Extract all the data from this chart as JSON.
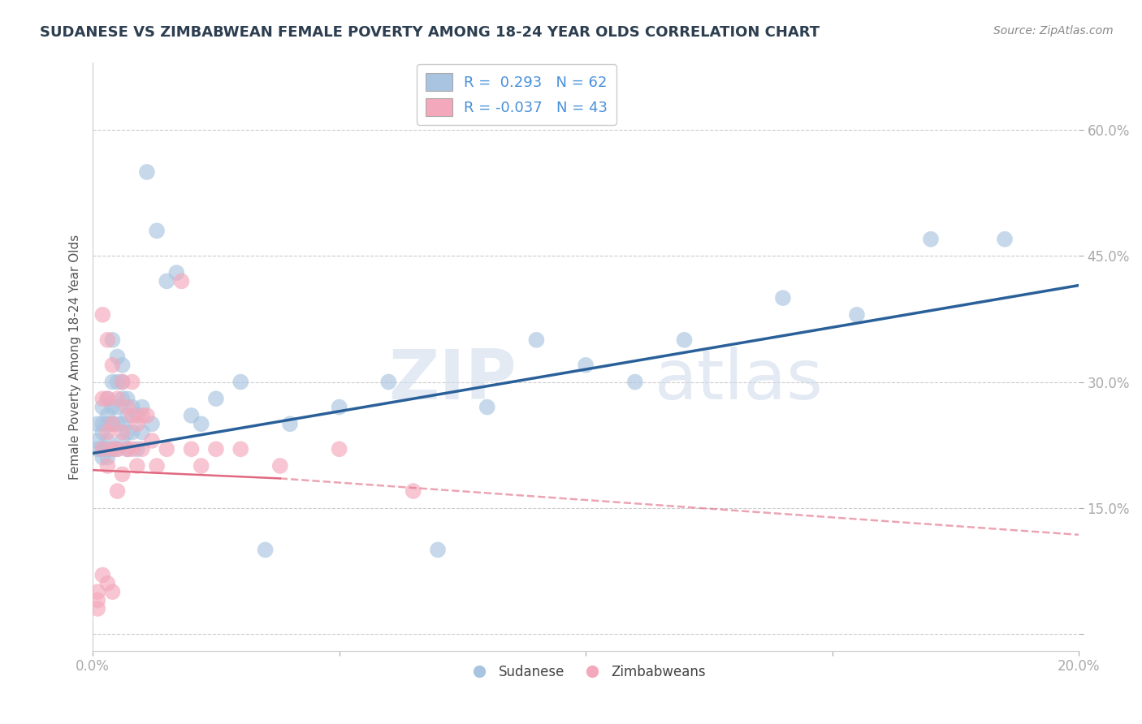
{
  "title": "SUDANESE VS ZIMBABWEAN FEMALE POVERTY AMONG 18-24 YEAR OLDS CORRELATION CHART",
  "source_text": "Source: ZipAtlas.com",
  "ylabel": "Female Poverty Among 18-24 Year Olds",
  "xlim": [
    0.0,
    0.2
  ],
  "ylim": [
    -0.02,
    0.68
  ],
  "sudanese_R": 0.293,
  "sudanese_N": 62,
  "zimbabwean_R": -0.037,
  "zimbabwean_N": 43,
  "sudanese_color": "#a8c4e0",
  "zimbabwean_color": "#f4a8bb",
  "sudanese_line_color": "#2a6099",
  "zimbabwean_line_color": "#e06880",
  "grid_color": "#c8c8c8",
  "background_color": "#ffffff",
  "watermark_zip": "ZIP",
  "watermark_atlas": "atlas",
  "title_color": "#2c3e50",
  "tick_color": "#4a90d9",
  "ylabel_color": "#555555",
  "source_color": "#888888",
  "sudanese_x": [
    0.001,
    0.001,
    0.001,
    0.002,
    0.002,
    0.002,
    0.002,
    0.002,
    0.003,
    0.003,
    0.003,
    0.003,
    0.003,
    0.003,
    0.004,
    0.004,
    0.004,
    0.004,
    0.004,
    0.005,
    0.005,
    0.005,
    0.005,
    0.005,
    0.006,
    0.006,
    0.006,
    0.006,
    0.006,
    0.007,
    0.007,
    0.007,
    0.007,
    0.008,
    0.008,
    0.009,
    0.009,
    0.01,
    0.01,
    0.011,
    0.012,
    0.013,
    0.015,
    0.017,
    0.02,
    0.022,
    0.025,
    0.03,
    0.035,
    0.04,
    0.05,
    0.06,
    0.07,
    0.08,
    0.09,
    0.1,
    0.11,
    0.12,
    0.14,
    0.155,
    0.17,
    0.185
  ],
  "sudanese_y": [
    0.25,
    0.23,
    0.22,
    0.27,
    0.25,
    0.24,
    0.22,
    0.21,
    0.28,
    0.26,
    0.25,
    0.23,
    0.22,
    0.21,
    0.35,
    0.3,
    0.27,
    0.25,
    0.22,
    0.33,
    0.3,
    0.27,
    0.25,
    0.22,
    0.32,
    0.3,
    0.28,
    0.25,
    0.23,
    0.28,
    0.26,
    0.24,
    0.22,
    0.27,
    0.24,
    0.26,
    0.22,
    0.27,
    0.24,
    0.55,
    0.25,
    0.48,
    0.42,
    0.43,
    0.26,
    0.25,
    0.28,
    0.3,
    0.1,
    0.25,
    0.27,
    0.3,
    0.1,
    0.27,
    0.35,
    0.32,
    0.3,
    0.35,
    0.4,
    0.38,
    0.47,
    0.47
  ],
  "zimbabwean_x": [
    0.001,
    0.001,
    0.001,
    0.002,
    0.002,
    0.002,
    0.002,
    0.003,
    0.003,
    0.003,
    0.003,
    0.003,
    0.004,
    0.004,
    0.004,
    0.004,
    0.005,
    0.005,
    0.005,
    0.006,
    0.006,
    0.006,
    0.007,
    0.007,
    0.008,
    0.008,
    0.008,
    0.009,
    0.009,
    0.01,
    0.01,
    0.011,
    0.012,
    0.013,
    0.015,
    0.018,
    0.02,
    0.022,
    0.025,
    0.03,
    0.038,
    0.05,
    0.065
  ],
  "zimbabwean_y": [
    0.05,
    0.04,
    0.03,
    0.38,
    0.28,
    0.22,
    0.07,
    0.35,
    0.28,
    0.24,
    0.2,
    0.06,
    0.32,
    0.25,
    0.22,
    0.05,
    0.28,
    0.22,
    0.17,
    0.3,
    0.24,
    0.19,
    0.27,
    0.22,
    0.3,
    0.26,
    0.22,
    0.25,
    0.2,
    0.26,
    0.22,
    0.26,
    0.23,
    0.2,
    0.22,
    0.42,
    0.22,
    0.2,
    0.22,
    0.22,
    0.2,
    0.22,
    0.17
  ],
  "blue_line_x0": 0.0,
  "blue_line_y0": 0.215,
  "blue_line_x1": 0.2,
  "blue_line_y1": 0.415,
  "pink_line_x0": 0.0,
  "pink_line_y0": 0.195,
  "pink_line_x1": 0.065,
  "pink_line_x1_solid": 0.038,
  "pink_line_y1": 0.178,
  "pink_line_xend": 0.2,
  "pink_line_yend": 0.118
}
